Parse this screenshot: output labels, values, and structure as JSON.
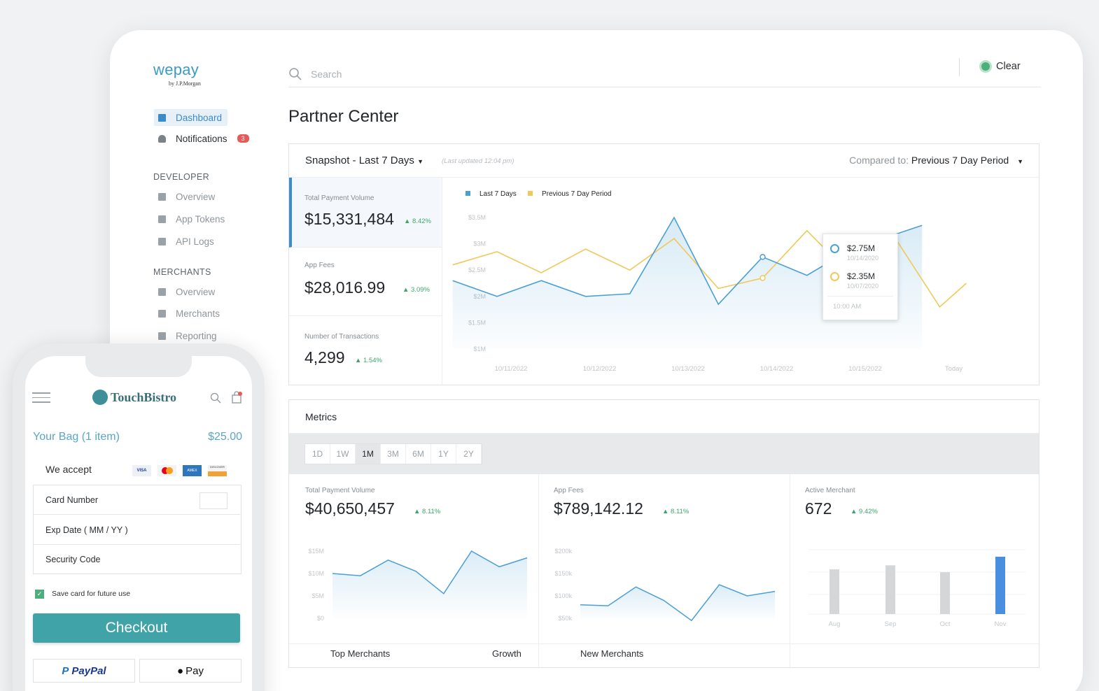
{
  "brand": {
    "name": "wepay",
    "sub": "by J.P.Morgan"
  },
  "sidebar": {
    "primary": [
      {
        "label": "Dashboard"
      },
      {
        "label": "Notifications",
        "badge": "3"
      }
    ],
    "developer_title": "DEVELOPER",
    "developer": [
      {
        "label": "Overview"
      },
      {
        "label": "App Tokens"
      },
      {
        "label": "API Logs"
      }
    ],
    "merchants_title": "MERCHANTS",
    "merchants": [
      {
        "label": "Overview"
      },
      {
        "label": "Merchants"
      },
      {
        "label": "Reporting"
      }
    ]
  },
  "search": {
    "placeholder": "Search"
  },
  "clear_label": "Clear",
  "page_title": "Partner Center",
  "snapshot": {
    "title": "Snapshot - Last 7 Days",
    "updated": "(Last updated 12:04 pm)",
    "compared_prefix": "Compared to:",
    "compared_value": "Previous 7 Day Period",
    "kpis": [
      {
        "label": "Total Payment Volume",
        "value": "$15,331,484",
        "change": "8.42%"
      },
      {
        "label": "App Fees",
        "value": "$28,016.99",
        "change": "3.09%"
      },
      {
        "label": "Number of Transactions",
        "value": "4,299",
        "change": "1.54%"
      }
    ],
    "tooltip": {
      "v1": "$2.75M",
      "d1": "10/14/2020",
      "v2": "$2.35M",
      "d2": "10/07/2020",
      "time": "10:00 AM"
    }
  },
  "metrics": {
    "title": "Metrics",
    "tabs": [
      "1D",
      "1W",
      "1M",
      "3M",
      "6M",
      "1Y",
      "2Y"
    ],
    "active_tab": "1M",
    "cards": [
      {
        "label": "Total Payment Volume",
        "value": "$40,650,457",
        "change": "8.11%"
      },
      {
        "label": "App Fees",
        "value": "$789,142.12",
        "change": "8.11%"
      },
      {
        "label": "Active Merchant",
        "value": "672",
        "change": "9.42%"
      }
    ],
    "footer": {
      "top_merchants": "Top Merchants",
      "growth": "Growth",
      "new_merchants": "New Merchants"
    }
  },
  "chart_data": [
    {
      "type": "line",
      "title": "",
      "legend_position": "top-left",
      "categories": [
        "10/11/2022",
        "10/12/2022",
        "10/13/2022",
        "10/14/2022",
        "10/15/2022",
        "Today"
      ],
      "yticks": [
        "$3.5M",
        "$3M",
        "$2.5M",
        "$2M",
        "$1.5M",
        "$1M"
      ],
      "ylim": [
        1,
        3.5
      ],
      "series": [
        {
          "name": "Last 7 Days",
          "color": "#4a9fd4",
          "points": [
            [
              -0.5,
              2.3
            ],
            [
              0,
              2.0
            ],
            [
              0.5,
              2.3
            ],
            [
              1,
              2.0
            ],
            [
              1.5,
              2.05
            ],
            [
              2,
              3.5
            ],
            [
              2.5,
              1.85
            ],
            [
              3,
              2.75
            ],
            [
              3.5,
              2.4
            ],
            [
              4,
              2.9
            ],
            [
              4.8,
              3.35
            ]
          ]
        },
        {
          "name": "Previous 7 Day Period",
          "color": "#f1c85a",
          "points": [
            [
              -0.5,
              2.6
            ],
            [
              0,
              2.85
            ],
            [
              0.5,
              2.45
            ],
            [
              1,
              2.9
            ],
            [
              1.5,
              2.5
            ],
            [
              2,
              3.1
            ],
            [
              2.5,
              2.15
            ],
            [
              3,
              2.35
            ],
            [
              3.5,
              3.25
            ],
            [
              4,
              2.4
            ],
            [
              4.5,
              3.1
            ],
            [
              5,
              1.8
            ],
            [
              5.3,
              2.25
            ]
          ]
        }
      ]
    },
    {
      "type": "area",
      "title": "",
      "yticks": [
        "$15M",
        "$10M",
        "$5M",
        "$0"
      ],
      "ylim": [
        0,
        15
      ],
      "values": [
        10,
        9.5,
        13,
        10.5,
        5.5,
        15,
        11.5,
        13.5
      ],
      "color": "#4a9fd4"
    },
    {
      "type": "area",
      "title": "",
      "yticks": [
        "$200k",
        "$150k",
        "$100k",
        "$50k"
      ],
      "ylim": [
        50,
        200
      ],
      "values": [
        80,
        78,
        120,
        90,
        45,
        125,
        100,
        110
      ],
      "color": "#4a9fd4"
    },
    {
      "type": "bar",
      "title": "",
      "categories": [
        "Aug",
        "Sep",
        "Oct",
        "Nov"
      ],
      "values": [
        0.78,
        0.85,
        0.73,
        1.0
      ],
      "colors": [
        "#d4d6d8",
        "#d4d6d8",
        "#d4d6d8",
        "#4a8ee0"
      ]
    }
  ],
  "phone": {
    "brand": "TouchBistro",
    "bag_label": "Your Bag (1 item)",
    "bag_total": "$25.00",
    "we_accept": "We accept",
    "cards": [
      "VISA",
      "MC",
      "AMEX",
      "DISCOVER"
    ],
    "fields": [
      "Card Number",
      "Exp Date ( MM / YY )",
      "Security Code"
    ],
    "save_label": "Save card for future use",
    "checkout": "Checkout",
    "paypal": "PayPal",
    "applepay": "Pay"
  }
}
